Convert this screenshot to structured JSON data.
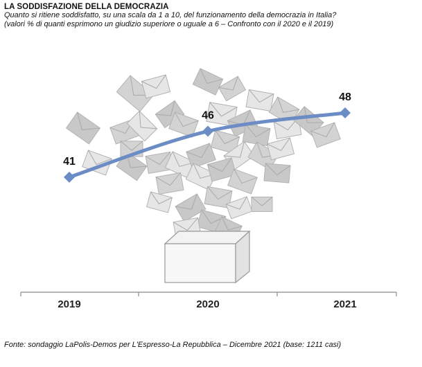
{
  "header": {
    "title": "LA SODDISFAZIONE DELLA DEMOCRAZIA",
    "subtitle": "Quanto si ritiene soddisfatto, su una scala da 1 a 10, del funzionamento della democrazia in Italia?",
    "note": "(valori % di quanti esprimono un giudizio superiore o uguale a 6 – Confronto con il 2020 e il 2019)"
  },
  "source": "Fonte: sondaggio LaPolis-Demos per L'Espresso-La Repubblica – Dicembre 2021 (base: 1211 casi)",
  "chart_data": {
    "type": "line",
    "categories": [
      "2019",
      "2020",
      "2021"
    ],
    "series": [
      {
        "values": [
          41,
          46,
          48
        ],
        "color": "#6b8cc4"
      }
    ],
    "data_labels": [
      "41",
      "46",
      "48"
    ],
    "ylim": [
      30,
      55
    ],
    "grid": false,
    "title": "LA SODDISFAZIONE DELLA DEMOCRAZIA",
    "xlabel": "",
    "ylabel": ""
  },
  "decoration": {
    "background_illustration": "ballot-box-with-envelopes"
  }
}
